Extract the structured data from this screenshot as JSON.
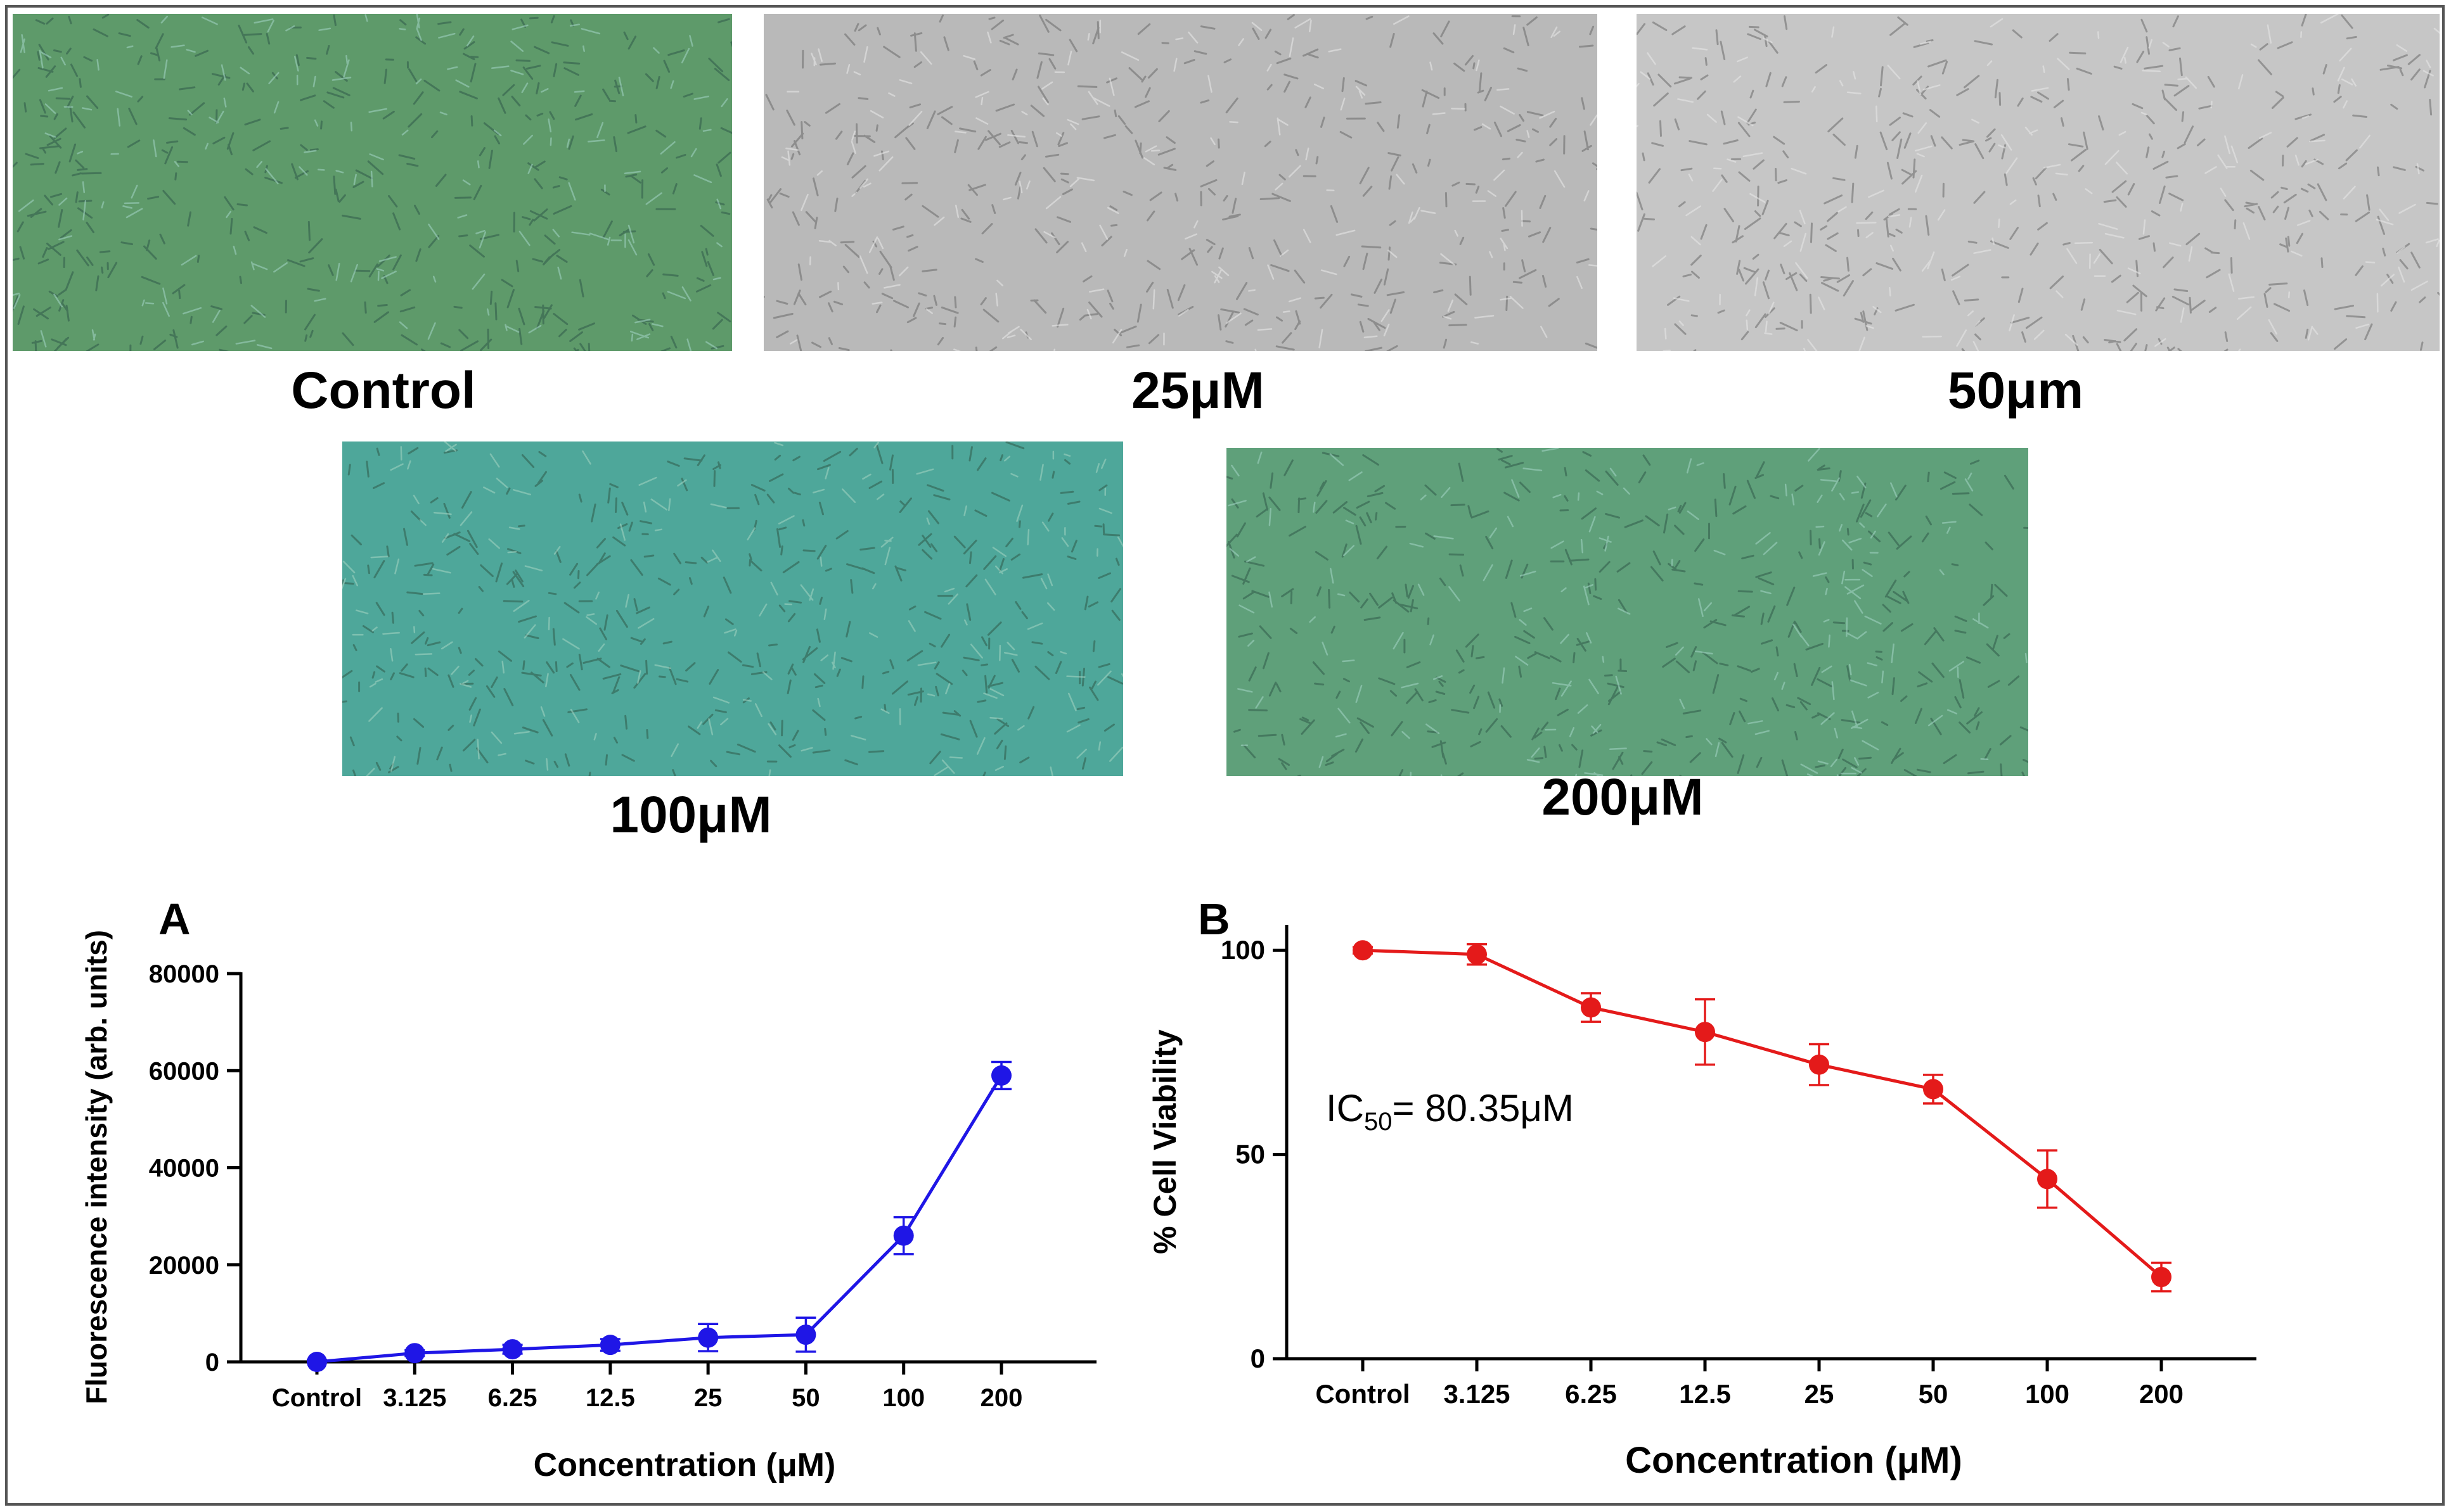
{
  "images": [
    {
      "id": "control",
      "caption": "Control",
      "tint": "#5e9a6a"
    },
    {
      "id": "25",
      "caption": "25μM",
      "tint": "#b9b9b9"
    },
    {
      "id": "50",
      "caption": "50μm",
      "tint": "#c6c6c6"
    },
    {
      "id": "100",
      "caption": "100μM",
      "tint": "#4ea79a"
    },
    {
      "id": "200",
      "caption": "200μM",
      "tint": "#5fa07a"
    }
  ],
  "chart_data": [
    {
      "type": "line",
      "panel_label": "A",
      "categories": [
        "Control",
        "3.125",
        "6.25",
        "12.5",
        "25",
        "50",
        "100",
        "200"
      ],
      "values": [
        0,
        1800,
        2600,
        3500,
        5000,
        5600,
        26000,
        59000
      ],
      "errors": [
        400,
        600,
        900,
        1200,
        2800,
        3500,
        3800,
        2800
      ],
      "xlabel": "Concentration (μM)",
      "ylabel": "Fluorescence intensity (arb. units)",
      "ylim": [
        0,
        80000
      ],
      "yticks": [
        "0",
        "20000",
        "40000",
        "60000",
        "80000"
      ],
      "ytick_values": [
        0,
        20000,
        40000,
        60000,
        80000
      ],
      "color": "#1f16e6"
    },
    {
      "type": "line",
      "panel_label": "B",
      "categories": [
        "Control",
        "3.125",
        "6.25",
        "12.5",
        "25",
        "50",
        "100",
        "200"
      ],
      "values": [
        100,
        99,
        86,
        80,
        72,
        66,
        44,
        20
      ],
      "errors": [
        0.8,
        2.5,
        3.5,
        8,
        5,
        3.5,
        7,
        3.5
      ],
      "xlabel": "Concentration (μM)",
      "ylabel": "% Cell Viability",
      "ylim": [
        0,
        105
      ],
      "yticks": [
        "0",
        "50",
        "100"
      ],
      "ytick_values": [
        0,
        50,
        100
      ],
      "annotation": {
        "prefix": "IC",
        "sub": "50",
        "suffix": "= 80.35μM"
      },
      "color": "#e41a1a"
    }
  ]
}
